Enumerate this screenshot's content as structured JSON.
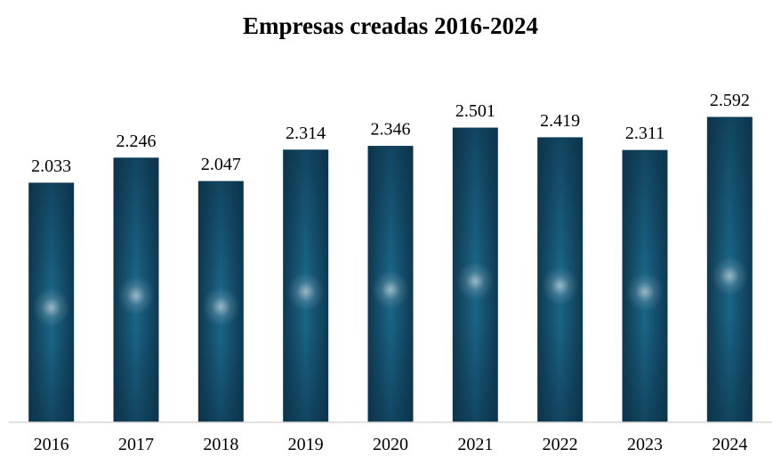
{
  "chart_data": {
    "type": "bar",
    "title": "Empresas creadas 2016-2024",
    "categories": [
      "2016",
      "2017",
      "2018",
      "2019",
      "2020",
      "2021",
      "2022",
      "2023",
      "2024"
    ],
    "values": [
      2033,
      2246,
      2047,
      2314,
      2346,
      2501,
      2419,
      2311,
      2592
    ],
    "data_labels": [
      "2.033",
      "2.246",
      "2.047",
      "2.314",
      "2.346",
      "2.501",
      "2.419",
      "2.311",
      "2.592"
    ],
    "xlabel": "",
    "ylabel": "",
    "ylim": [
      0,
      2592
    ],
    "grid": false,
    "legend": "none",
    "bar_color": "#154e68",
    "bar_edge_color": "#0f3a52"
  }
}
